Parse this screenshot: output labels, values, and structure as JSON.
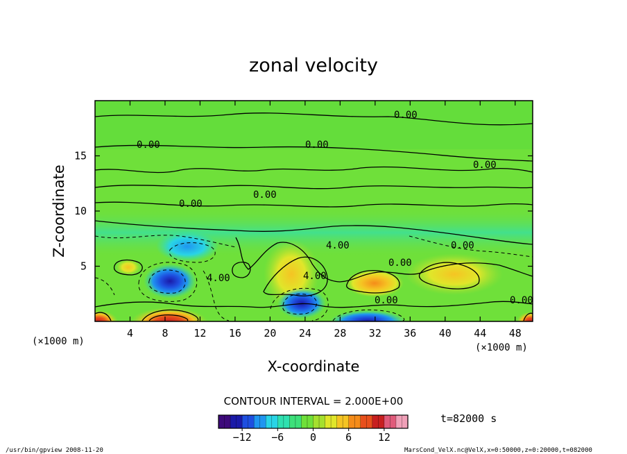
{
  "chart_data": {
    "type": "heatmap",
    "title": "zonal velocity",
    "xlabel": "X-coordinate",
    "ylabel": "Z-coordinate",
    "x_unit_left": "(×1000 m)",
    "x_unit_right": "(×1000 m)",
    "y_unit": "(×1000 m)",
    "xlim": [
      0,
      50
    ],
    "ylim": [
      0,
      20
    ],
    "xticks": [
      4,
      8,
      12,
      16,
      20,
      24,
      28,
      32,
      36,
      40,
      44,
      48
    ],
    "yticks": [
      5,
      10,
      15
    ],
    "contour_interval_text": "CONTOUR INTERVAL = 2.000E+00",
    "time_text": "t=82000 s",
    "colorbar": {
      "min": -16,
      "max": 16,
      "ticks": [
        -12,
        -6,
        0,
        6,
        12
      ],
      "colors": [
        "#3d0a7a",
        "#1a1aa8",
        "#1e4fe0",
        "#1f95f0",
        "#29d4e6",
        "#2fe0b0",
        "#3de07a",
        "#6fe03a",
        "#a5e02e",
        "#e0e62a",
        "#f5c423",
        "#f58c1a",
        "#e8501c",
        "#c81f1f",
        "#e05a7a",
        "#f0a0b8"
      ]
    },
    "contour_labels": [
      "0.00",
      "0.00",
      "0.00",
      "0.00",
      "0.00",
      "0.00",
      "4.00",
      "4.00",
      "0.00",
      "0.00",
      "0.00",
      "0.00",
      "4.00"
    ],
    "features": [
      {
        "kind": "max",
        "x": 8.5,
        "z": 0.3,
        "value": 14
      },
      {
        "kind": "max",
        "x": 0.5,
        "z": 0.3,
        "value": 12
      },
      {
        "kind": "max",
        "x": 49.5,
        "z": 0.3,
        "value": 12
      },
      {
        "kind": "max",
        "x": 32.2,
        "z": 3.5,
        "value": 9
      },
      {
        "kind": "max",
        "x": 23.5,
        "z": 5.0,
        "value": 6
      },
      {
        "kind": "max",
        "x": 41.5,
        "z": 4.0,
        "value": 6
      },
      {
        "kind": "min",
        "x": 8.5,
        "z": 3.8,
        "value": -8
      },
      {
        "kind": "min",
        "x": 23.5,
        "z": 1.7,
        "value": -9
      },
      {
        "kind": "min",
        "x": 31.0,
        "z": 0.3,
        "value": -10
      },
      {
        "kind": "min",
        "x": 11.5,
        "z": 6.5,
        "value": -6
      }
    ]
  },
  "footer": {
    "left": "/usr/bin/gpview  2008-11-20",
    "right": "MarsCond_VelX.nc@VelX,x=0:50000,z=0:20000,t=082000"
  }
}
